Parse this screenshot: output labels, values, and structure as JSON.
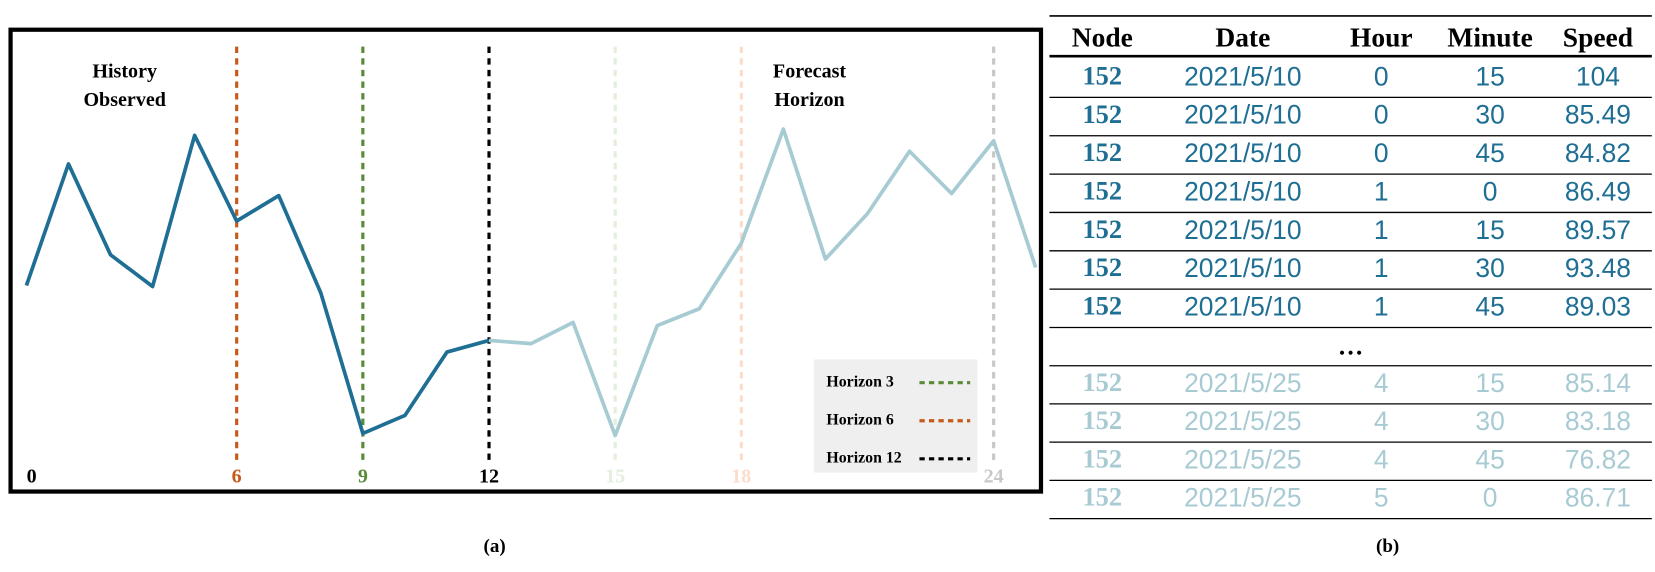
{
  "chart_data": {
    "type": "line",
    "annotations": [
      [
        "History",
        "Observed"
      ],
      [
        "Forecast",
        "Horizon"
      ]
    ],
    "x": [
      0,
      1,
      2,
      3,
      4,
      5,
      6,
      7,
      8,
      9,
      10,
      11,
      12,
      13,
      14,
      15,
      16,
      17,
      18,
      19,
      20,
      21,
      22,
      23,
      24
    ],
    "values": [
      195,
      310,
      224,
      194,
      337,
      256,
      280,
      188,
      55,
      72,
      132,
      143,
      140,
      160,
      53,
      157,
      173,
      235,
      343,
      220,
      263,
      322,
      282,
      332,
      212
    ],
    "split": 11,
    "colors": [
      "#1f6e94",
      "#a7cbd3"
    ],
    "xlim": [
      0,
      24
    ],
    "ylim": [
      0,
      437
    ],
    "markers": [
      {
        "label": "0",
        "x": 0,
        "color": "#000000",
        "dashed": false
      },
      {
        "label": "6",
        "x": 5,
        "color": "#c55a1a",
        "dashed": true
      },
      {
        "label": "9",
        "x": 8,
        "color": "#5a8a3a",
        "dashed": true
      },
      {
        "label": "12",
        "x": 11,
        "color": "#000000",
        "dashed": true
      },
      {
        "label": "15",
        "x": 14,
        "color": "#e3eedd",
        "dashed": true
      },
      {
        "label": "18",
        "x": 17,
        "color": "#fcdcca",
        "dashed": true
      },
      {
        "label": "24",
        "x": 23,
        "color": "#c8c8c8",
        "dashed": true
      }
    ],
    "legend": [
      {
        "name": "Horizon 3",
        "color": "#5a8a3a"
      },
      {
        "name": "Horizon 6",
        "color": "#c55a1a"
      },
      {
        "name": "Horizon 12",
        "color": "#000000"
      }
    ],
    "caption": "(a)"
  },
  "table": {
    "header": [
      "Node",
      "Date",
      "Hour",
      "Minute",
      "Speed"
    ],
    "rows": [
      [
        152,
        "2021/5/10",
        0,
        15,
        104
      ],
      [
        152,
        "2021/5/10",
        0,
        30,
        85.49
      ],
      [
        152,
        "2021/5/10",
        0,
        45,
        84.82
      ],
      [
        152,
        "2021/5/10",
        1,
        0,
        86.49
      ],
      [
        152,
        "2021/5/10",
        1,
        15,
        89.57
      ],
      [
        152,
        "2021/5/10",
        1,
        30,
        93.48
      ],
      [
        152,
        "2021/5/10",
        1,
        45,
        89.03
      ]
    ],
    "ellipsis": "…",
    "rows_after": [
      [
        152,
        "2021/5/25",
        4,
        15,
        85.14
      ],
      [
        152,
        "2021/5/25",
        4,
        30,
        83.18
      ],
      [
        152,
        "2021/5/25",
        4,
        45,
        76.82
      ],
      [
        152,
        "2021/5/25",
        5,
        0,
        86.71
      ]
    ],
    "colors": [
      "#1f6e94",
      "#a8cbd3"
    ],
    "caption": "(b)"
  }
}
